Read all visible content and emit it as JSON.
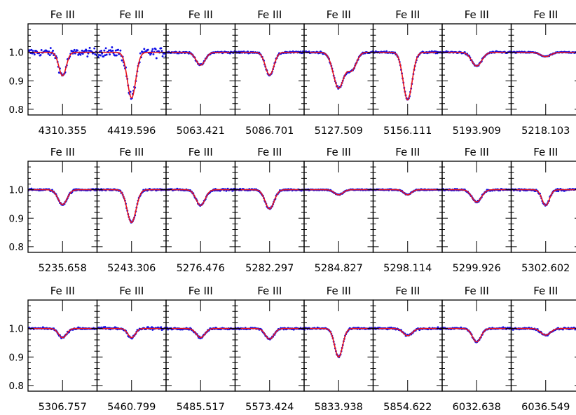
{
  "chart_data": {
    "type": "line",
    "panel_title": "Fe  III",
    "y_tick_labels": [
      "1.0",
      "0.9",
      "0.8"
    ],
    "y_ticks": [
      1.0,
      0.9,
      0.8
    ],
    "ylim": [
      0.78,
      1.1
    ],
    "x_offset_range": [
      -1.3,
      1.3
    ],
    "colors": {
      "model": "#e8141c",
      "observed": "#1010e8",
      "axes": "#000000"
    },
    "series_kinds": [
      "observed (dots)",
      "model (line)"
    ],
    "rows": [
      [
        {
          "wavelength": "4310.355",
          "min": 0.918,
          "sigma": 0.14,
          "noise": 0.01
        },
        {
          "wavelength": "4419.596",
          "min": 0.84,
          "sigma": 0.16,
          "noise": 0.012
        },
        {
          "wavelength": "5063.421",
          "min": 0.955,
          "sigma": 0.17,
          "noise": 0.003
        },
        {
          "wavelength": "5086.701",
          "min": 0.92,
          "sigma": 0.16,
          "noise": 0.003
        },
        {
          "wavelength": "5127.509",
          "min": 0.875,
          "sigma": 0.2,
          "noise": 0.003,
          "second": {
            "offset": 0.5,
            "depth": 0.06,
            "sigma": 0.17
          }
        },
        {
          "wavelength": "5156.111",
          "min": 0.833,
          "sigma": 0.17,
          "noise": 0.003
        },
        {
          "wavelength": "5193.909",
          "min": 0.952,
          "sigma": 0.19,
          "noise": 0.003
        },
        {
          "wavelength": "5218.103",
          "min": 0.985,
          "sigma": 0.19,
          "noise": 0.002
        }
      ],
      [
        {
          "wavelength": "5235.658",
          "min": 0.948,
          "sigma": 0.17,
          "noise": 0.003
        },
        {
          "wavelength": "5243.306",
          "min": 0.885,
          "sigma": 0.17,
          "noise": 0.003
        },
        {
          "wavelength": "5276.476",
          "min": 0.945,
          "sigma": 0.17,
          "noise": 0.003
        },
        {
          "wavelength": "5282.297",
          "min": 0.933,
          "sigma": 0.17,
          "noise": 0.003
        },
        {
          "wavelength": "5284.827",
          "min": 0.982,
          "sigma": 0.16,
          "noise": 0.002
        },
        {
          "wavelength": "5298.114",
          "min": 0.982,
          "sigma": 0.14,
          "noise": 0.002
        },
        {
          "wavelength": "5299.926",
          "min": 0.957,
          "sigma": 0.18,
          "noise": 0.003
        },
        {
          "wavelength": "5302.602",
          "min": 0.945,
          "sigma": 0.14,
          "noise": 0.004
        }
      ],
      [
        {
          "wavelength": "5306.757",
          "min": 0.968,
          "sigma": 0.15,
          "noise": 0.003
        },
        {
          "wavelength": "5460.799",
          "min": 0.968,
          "sigma": 0.14,
          "noise": 0.005
        },
        {
          "wavelength": "5485.517",
          "min": 0.968,
          "sigma": 0.16,
          "noise": 0.003
        },
        {
          "wavelength": "5573.424",
          "min": 0.963,
          "sigma": 0.16,
          "noise": 0.003
        },
        {
          "wavelength": "5833.938",
          "min": 0.9,
          "sigma": 0.15,
          "noise": 0.003
        },
        {
          "wavelength": "5854.622",
          "min": 0.975,
          "sigma": 0.17,
          "noise": 0.003
        },
        {
          "wavelength": "6032.638",
          "min": 0.953,
          "sigma": 0.16,
          "noise": 0.003
        },
        {
          "wavelength": "6036.549",
          "min": 0.977,
          "sigma": 0.18,
          "noise": 0.003
        }
      ]
    ]
  }
}
